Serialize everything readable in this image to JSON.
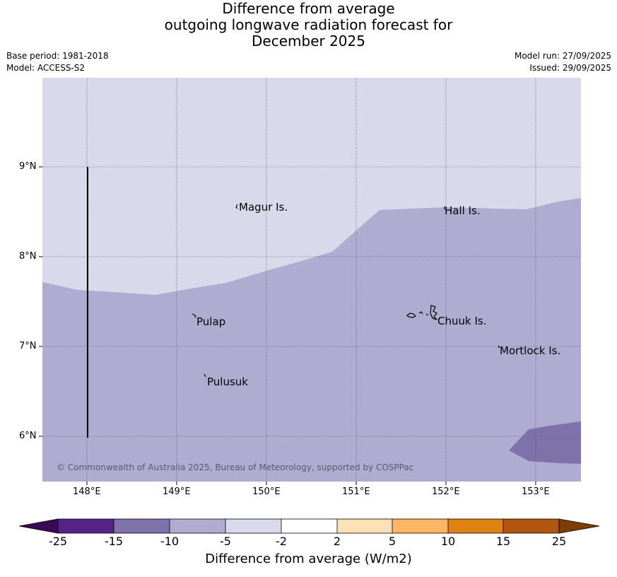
{
  "title": {
    "line1": "Difference from average",
    "line2": "outgoing longwave radiation forecast for",
    "line3": "December 2025"
  },
  "meta": {
    "base_period": "Base period: 1981-2018",
    "model": "Model: ACCESS-S2",
    "model_run": "Model run: 27/09/2025",
    "issued": "Issued: 29/09/2025"
  },
  "map": {
    "lon_labels": [
      "148°E",
      "149°E",
      "150°E",
      "151°E",
      "152°E",
      "153°E"
    ],
    "lat_labels": [
      "9°N",
      "8°N",
      "7°N",
      "6°N"
    ],
    "places": [
      "Magur Is.",
      "Hall Is.",
      "Pulap",
      "Chuuk Is.",
      "Mortlock Is.",
      "Pulusuk"
    ],
    "copyright": "© Commonwealth of Australia 2025, Bureau of Meteorology, supported by COSPPac",
    "colors": {
      "band_m5_m2": "#d8d9eb",
      "band_m10_m5": "#b0abd1",
      "band_m15_m10": "#7f72ab"
    }
  },
  "colorbar": {
    "labels": [
      "-25",
      "-15",
      "-10",
      "-5",
      "-2",
      "2",
      "5",
      "10",
      "15",
      "25"
    ],
    "colors": [
      "#3b0a57",
      "#532386",
      "#7f72ab",
      "#b0abd1",
      "#d8d9eb",
      "#ffffff",
      "#fde0b6",
      "#fcb562",
      "#e08213",
      "#b0560e",
      "#7b3f03"
    ],
    "title": "Difference from average (W/m2)"
  }
}
